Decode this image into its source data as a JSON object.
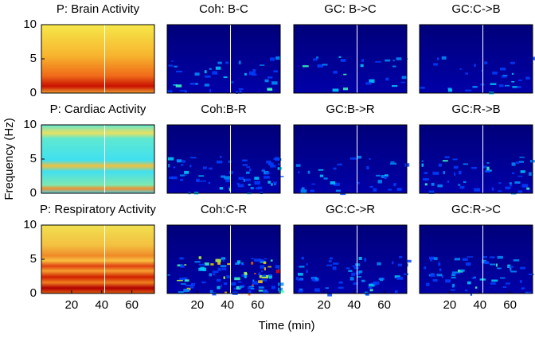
{
  "axes_labels": {
    "x": "Time (min)",
    "y": "Frequency (Hz)"
  },
  "chart_data": [
    {
      "type": "heatmap",
      "title": "P: Brain Activity",
      "colormap": "jet",
      "xlim": [
        0,
        75
      ],
      "ylim": [
        0,
        10
      ],
      "yticks": [
        0,
        5,
        10
      ],
      "marker_x": 42
    },
    {
      "type": "heatmap",
      "title": "Coh: B-C",
      "colormap": "jet",
      "xlim": [
        0,
        75
      ],
      "ylim": [
        0,
        10
      ],
      "marker_x": 42
    },
    {
      "type": "heatmap",
      "title": "GC: B->C",
      "colormap": "jet",
      "xlim": [
        0,
        75
      ],
      "ylim": [
        0,
        10
      ],
      "marker_x": 42
    },
    {
      "type": "heatmap",
      "title": "GC:C->B",
      "colormap": "jet",
      "xlim": [
        0,
        75
      ],
      "ylim": [
        0,
        10
      ],
      "marker_x": 42
    },
    {
      "type": "heatmap",
      "title": "P: Cardiac Activity",
      "colormap": "jet",
      "xlim": [
        0,
        75
      ],
      "ylim": [
        0,
        10
      ],
      "yticks": [
        0,
        5,
        10
      ],
      "marker_x": 42
    },
    {
      "type": "heatmap",
      "title": "Coh:B-R",
      "colormap": "jet",
      "xlim": [
        0,
        75
      ],
      "ylim": [
        0,
        10
      ],
      "marker_x": 42
    },
    {
      "type": "heatmap",
      "title": "GC:B->R",
      "colormap": "jet",
      "xlim": [
        0,
        75
      ],
      "ylim": [
        0,
        10
      ],
      "marker_x": 42
    },
    {
      "type": "heatmap",
      "title": "GC:R->B",
      "colormap": "jet",
      "xlim": [
        0,
        75
      ],
      "ylim": [
        0,
        10
      ],
      "marker_x": 42
    },
    {
      "type": "heatmap",
      "title": "P: Respiratory Activity",
      "colormap": "jet",
      "xlim": [
        0,
        75
      ],
      "ylim": [
        0,
        10
      ],
      "yticks": [
        0,
        5,
        10
      ],
      "xticks": [
        20,
        40,
        60
      ],
      "marker_x": 42
    },
    {
      "type": "heatmap",
      "title": "Coh:C-R",
      "colormap": "jet",
      "xlim": [
        0,
        75
      ],
      "ylim": [
        0,
        10
      ],
      "xticks": [
        20,
        40,
        60
      ],
      "marker_x": 42
    },
    {
      "type": "heatmap",
      "title": "GC:C->R",
      "colormap": "jet",
      "xlim": [
        0,
        75
      ],
      "ylim": [
        0,
        10
      ],
      "xticks": [
        20,
        40,
        60
      ],
      "marker_x": 42
    },
    {
      "type": "heatmap",
      "title": "GC:R->C",
      "colormap": "jet",
      "xlim": [
        0,
        75
      ],
      "ylim": [
        0,
        10
      ],
      "xticks": [
        20,
        40,
        60
      ],
      "marker_x": 42
    }
  ]
}
